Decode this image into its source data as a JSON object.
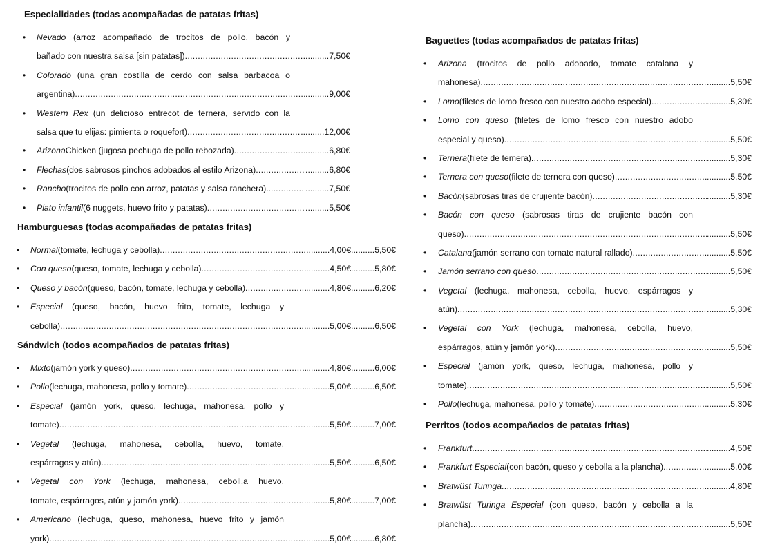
{
  "left": [
    {
      "heading": "Especialidades (todas acompañadas de patatas fritas)",
      "items": [
        {
          "name": "Nevado",
          "desc": " (arroz acompañado de trocitos de pollo, bacón y",
          "cont": "bañado con nuestra salsa [sin patatas])",
          "prices": [
            "7,50€"
          ]
        },
        {
          "name": "Colorado",
          "desc": " (una gran costilla de cerdo con salsa barbacoa o",
          "cont": "argentina)",
          "prices": [
            "9,00€"
          ]
        },
        {
          "name": "Western Rex",
          "desc": " (un delicioso entrecot de ternera, servido con la",
          "cont": "salsa que tu elijas: pimienta o roquefort)",
          "prices": [
            "12,00€"
          ]
        },
        {
          "name": "Arizona",
          "desc": " Chicken (jugosa pechuga de pollo rebozada)",
          "prices": [
            "6,80€"
          ]
        },
        {
          "name": "Flechas",
          "desc": " (dos sabrosos pinchos adobados al estilo Arizona)",
          "prices": [
            "6,80€"
          ]
        },
        {
          "name": "Rancho",
          "desc": " (trocitos de pollo con arroz, patatas y salsa ranchera)...",
          "prices": [
            "7,50€"
          ]
        },
        {
          "name": "Plato infantil",
          "desc": " (6 nuggets, huevo frito y patatas)",
          "prices": [
            "5,50€"
          ]
        }
      ]
    },
    {
      "heading": "Hamburguesas (todas acompañadas de patatas fritas)",
      "items": [
        {
          "name": "Normal",
          "desc": " (tomate, lechuga y cebolla)",
          "prices": [
            "4,00€",
            "5,50€"
          ]
        },
        {
          "name": "Con queso",
          "desc": " (queso, tomate, lechuga y cebolla)",
          "prices": [
            "4,50€",
            "5,80€"
          ]
        },
        {
          "name": "Queso y bacón",
          "desc": " (queso, bacón, tomate, lechuga y cebolla)",
          "prices": [
            "4,80€",
            "6,20€"
          ]
        },
        {
          "name": "Especial",
          "desc": " (queso, bacón, huevo frito, tomate, lechuga y",
          "cont": "cebolla)",
          "prices": [
            "5,00€",
            "6,50€"
          ]
        }
      ]
    },
    {
      "heading": "Sándwich (todos acompañados de patatas fritas)",
      "items": [
        {
          "name": "Mixto",
          "desc": " (jamón york y queso)",
          "prices": [
            "4,80€",
            "6,00€"
          ]
        },
        {
          "name": "Pollo",
          "desc": " (lechuga, mahonesa, pollo y tomate)",
          "prices": [
            "5,00€",
            "6,50€"
          ]
        },
        {
          "name": "Especial",
          "desc": " (jamón york, queso, lechuga, mahonesa, pollo y",
          "cont": "tomate)",
          "prices": [
            "5,50€",
            "7,00€"
          ]
        },
        {
          "name": "Vegetal",
          "desc": " (lechuga, mahonesa, cebolla, huevo, tomate,",
          "cont": "espárragos y atún)",
          "prices": [
            "5,50€",
            "6,50€"
          ]
        },
        {
          "name": "Vegetal con York",
          "desc": " (lechuga, mahonesa, ceboll,a huevo,",
          "cont": "tomate, espárragos, atún y jamón york)",
          "prices": [
            "5,80€",
            "7,00€"
          ]
        },
        {
          "name": "Americano",
          "desc": " (lechuga, queso, mahonesa, huevo frito y jamón",
          "cont": "york)",
          "prices": [
            "5,00€",
            "6,80€"
          ]
        }
      ]
    }
  ],
  "right": [
    {
      "heading": "Baguettes (todas acompañados de patatas fritas)",
      "items": [
        {
          "name": "Arizona",
          "desc": " (trocitos de pollo adobado, tomate catalana y",
          "cont": "mahonesa)",
          "prices": [
            "5,50€"
          ]
        },
        {
          "name": "Lomo",
          "desc": " (filetes de lomo fresco con nuestro adobo especial)",
          "prices": [
            "5,30€"
          ]
        },
        {
          "name": "Lomo con queso",
          "desc": " (filetes de lomo fresco con nuestro adobo",
          "cont": "especial y queso)",
          "prices": [
            "5,50€"
          ]
        },
        {
          "name": "Ternera",
          "desc": " (filete de temera)",
          "prices": [
            "5,30€"
          ]
        },
        {
          "name": "Ternera con queso",
          "desc": " (filete de ternera con queso)",
          "prices": [
            "5,50€"
          ]
        },
        {
          "name": "Bacón",
          "desc": " (sabrosas tiras de crujiente bacón)",
          "prices": [
            "5,30€"
          ]
        },
        {
          "name": "Bacón con queso",
          "desc": " (sabrosas tiras de crujiente bacón con",
          "cont": "queso)",
          "prices": [
            "5,50€"
          ]
        },
        {
          "name": "Catalana",
          "desc": " (jamón serrano con tomate natural rallado)",
          "prices": [
            "5,50€"
          ]
        },
        {
          "name": "Jamón serrano con queso",
          "desc": "",
          "prices": [
            "5,50€"
          ]
        },
        {
          "name": "Vegetal",
          "desc": " (lechuga, mahonesa, cebolla, huevo,  espárragos y",
          "cont": "atún)",
          "prices": [
            "5,30€"
          ]
        },
        {
          "name": "Vegetal con York",
          "desc": " (lechuga, mahonesa, cebolla, huevo,",
          "cont": "espárragos, atún y jamón york)",
          "prices": [
            "5,50€"
          ]
        },
        {
          "name": "Especial",
          "desc": " (jamón york, queso, lechuga, mahonesa, pollo y",
          "cont": "tomate)",
          "prices": [
            "5,50€"
          ]
        },
        {
          "name": "Pollo",
          "desc": " (lechuga, mahonesa, pollo y tomate)",
          "prices": [
            "5,30€"
          ]
        }
      ]
    },
    {
      "heading": "Perritos (todos acompañados de patatas fritas)",
      "items": [
        {
          "name": "Frankfurt",
          "desc": "",
          "prices": [
            "4,50€"
          ]
        },
        {
          "name": "Frankfurt Especial",
          "desc": " (con bacón, queso y cebolla a la plancha)",
          "prices": [
            "5,00€"
          ]
        },
        {
          "name": "Bratwüst Turinga",
          "desc": "",
          "prices": [
            "4,80€"
          ]
        },
        {
          "name": "Bratwüst Turinga Especial",
          "desc": " (con queso, bacón y cebolla a la",
          "cont": "plancha)",
          "prices": [
            "5,50€"
          ]
        }
      ]
    }
  ]
}
